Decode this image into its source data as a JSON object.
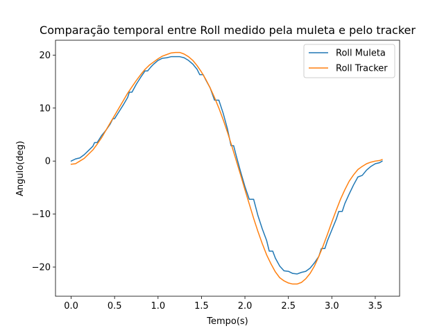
{
  "chart_data": {
    "type": "line",
    "title": "Comparação temporal entre Roll medido pela muleta e pelo tracker",
    "xlabel": "Tempo(s)",
    "ylabel": "Angulo(deg)",
    "xlim": [
      -0.18,
      3.78
    ],
    "ylim": [
      -25.5,
      22.8
    ],
    "xticks": [
      0.0,
      0.5,
      1.0,
      1.5,
      2.0,
      2.5,
      3.0,
      3.5
    ],
    "xtick_labels": [
      "0.0",
      "0.5",
      "1.0",
      "1.5",
      "2.0",
      "2.5",
      "3.0",
      "3.5"
    ],
    "yticks": [
      -20,
      -10,
      0,
      10,
      20
    ],
    "ytick_labels": [
      "−20",
      "−10",
      "0",
      "10",
      "20"
    ],
    "grid": false,
    "legend_position": "top-right",
    "series": [
      {
        "name": "Roll Muleta",
        "color": "#1f77b4",
        "points": [
          [
            0.0,
            0.0
          ],
          [
            0.05,
            0.4
          ],
          [
            0.1,
            0.6
          ],
          [
            0.15,
            1.2
          ],
          [
            0.2,
            2.0
          ],
          [
            0.25,
            2.8
          ],
          [
            0.27,
            3.5
          ],
          [
            0.3,
            3.5
          ],
          [
            0.35,
            4.8
          ],
          [
            0.4,
            5.8
          ],
          [
            0.45,
            7.0
          ],
          [
            0.48,
            8.0
          ],
          [
            0.5,
            8.0
          ],
          [
            0.55,
            9.3
          ],
          [
            0.6,
            10.6
          ],
          [
            0.65,
            12.0
          ],
          [
            0.67,
            13.0
          ],
          [
            0.7,
            13.0
          ],
          [
            0.75,
            14.5
          ],
          [
            0.8,
            15.8
          ],
          [
            0.85,
            17.0
          ],
          [
            0.88,
            17.0
          ],
          [
            0.92,
            17.8
          ],
          [
            0.95,
            18.3
          ],
          [
            1.0,
            19.0
          ],
          [
            1.05,
            19.4
          ],
          [
            1.1,
            19.5
          ],
          [
            1.15,
            19.7
          ],
          [
            1.2,
            19.7
          ],
          [
            1.25,
            19.7
          ],
          [
            1.3,
            19.5
          ],
          [
            1.35,
            19.0
          ],
          [
            1.4,
            18.3
          ],
          [
            1.45,
            17.3
          ],
          [
            1.48,
            16.3
          ],
          [
            1.52,
            16.3
          ],
          [
            1.55,
            15.3
          ],
          [
            1.6,
            13.8
          ],
          [
            1.65,
            11.5
          ],
          [
            1.7,
            11.5
          ],
          [
            1.75,
            9.0
          ],
          [
            1.8,
            6.0
          ],
          [
            1.84,
            2.9
          ],
          [
            1.87,
            2.9
          ],
          [
            1.9,
            1.0
          ],
          [
            1.95,
            -2.0
          ],
          [
            2.0,
            -4.8
          ],
          [
            2.05,
            -7.2
          ],
          [
            2.1,
            -7.2
          ],
          [
            2.15,
            -10.3
          ],
          [
            2.2,
            -12.8
          ],
          [
            2.25,
            -15.0
          ],
          [
            2.28,
            -17.0
          ],
          [
            2.32,
            -17.0
          ],
          [
            2.35,
            -18.3
          ],
          [
            2.4,
            -19.8
          ],
          [
            2.45,
            -20.7
          ],
          [
            2.5,
            -20.8
          ],
          [
            2.55,
            -21.2
          ],
          [
            2.6,
            -21.3
          ],
          [
            2.65,
            -21.0
          ],
          [
            2.7,
            -20.8
          ],
          [
            2.75,
            -20.2
          ],
          [
            2.8,
            -19.2
          ],
          [
            2.85,
            -18.0
          ],
          [
            2.88,
            -16.5
          ],
          [
            2.92,
            -16.5
          ],
          [
            2.95,
            -15.0
          ],
          [
            3.0,
            -13.0
          ],
          [
            3.05,
            -11.0
          ],
          [
            3.08,
            -9.5
          ],
          [
            3.12,
            -9.5
          ],
          [
            3.15,
            -8.0
          ],
          [
            3.2,
            -6.2
          ],
          [
            3.25,
            -4.5
          ],
          [
            3.3,
            -3.0
          ],
          [
            3.35,
            -2.7
          ],
          [
            3.4,
            -1.7
          ],
          [
            3.45,
            -1.0
          ],
          [
            3.5,
            -0.5
          ],
          [
            3.55,
            -0.3
          ],
          [
            3.58,
            0.0
          ]
        ]
      },
      {
        "name": "Roll Tracker",
        "color": "#ff7f0e",
        "points": [
          [
            0.0,
            -0.6
          ],
          [
            0.05,
            -0.5
          ],
          [
            0.1,
            0.0
          ],
          [
            0.15,
            0.5
          ],
          [
            0.2,
            1.3
          ],
          [
            0.25,
            2.1
          ],
          [
            0.3,
            3.2
          ],
          [
            0.35,
            4.4
          ],
          [
            0.4,
            5.8
          ],
          [
            0.45,
            7.2
          ],
          [
            0.5,
            8.6
          ],
          [
            0.55,
            10.0
          ],
          [
            0.6,
            11.4
          ],
          [
            0.65,
            12.8
          ],
          [
            0.7,
            14.0
          ],
          [
            0.75,
            15.2
          ],
          [
            0.8,
            16.3
          ],
          [
            0.85,
            17.3
          ],
          [
            0.9,
            18.1
          ],
          [
            0.95,
            18.7
          ],
          [
            1.0,
            19.3
          ],
          [
            1.05,
            19.8
          ],
          [
            1.1,
            20.1
          ],
          [
            1.15,
            20.4
          ],
          [
            1.2,
            20.5
          ],
          [
            1.25,
            20.5
          ],
          [
            1.3,
            20.2
          ],
          [
            1.35,
            19.7
          ],
          [
            1.4,
            19.0
          ],
          [
            1.45,
            18.0
          ],
          [
            1.5,
            16.8
          ],
          [
            1.55,
            15.4
          ],
          [
            1.6,
            13.8
          ],
          [
            1.65,
            12.0
          ],
          [
            1.7,
            10.0
          ],
          [
            1.75,
            7.8
          ],
          [
            1.8,
            5.4
          ],
          [
            1.85,
            2.8
          ],
          [
            1.9,
            0.1
          ],
          [
            1.95,
            -2.6
          ],
          [
            2.0,
            -5.4
          ],
          [
            2.05,
            -8.1
          ],
          [
            2.1,
            -10.8
          ],
          [
            2.15,
            -13.3
          ],
          [
            2.2,
            -15.6
          ],
          [
            2.25,
            -17.7
          ],
          [
            2.3,
            -19.4
          ],
          [
            2.35,
            -20.9
          ],
          [
            2.4,
            -22.0
          ],
          [
            2.45,
            -22.6
          ],
          [
            2.5,
            -23.0
          ],
          [
            2.55,
            -23.2
          ],
          [
            2.6,
            -23.2
          ],
          [
            2.65,
            -22.9
          ],
          [
            2.7,
            -22.2
          ],
          [
            2.75,
            -21.2
          ],
          [
            2.8,
            -19.8
          ],
          [
            2.85,
            -18.0
          ],
          [
            2.9,
            -16.0
          ],
          [
            2.95,
            -13.8
          ],
          [
            3.0,
            -11.5
          ],
          [
            3.05,
            -9.3
          ],
          [
            3.1,
            -7.2
          ],
          [
            3.15,
            -5.4
          ],
          [
            3.2,
            -3.8
          ],
          [
            3.25,
            -2.6
          ],
          [
            3.3,
            -1.6
          ],
          [
            3.35,
            -1.0
          ],
          [
            3.4,
            -0.5
          ],
          [
            3.45,
            -0.2
          ],
          [
            3.5,
            0.0
          ],
          [
            3.55,
            0.1
          ],
          [
            3.58,
            0.3
          ]
        ]
      }
    ]
  }
}
